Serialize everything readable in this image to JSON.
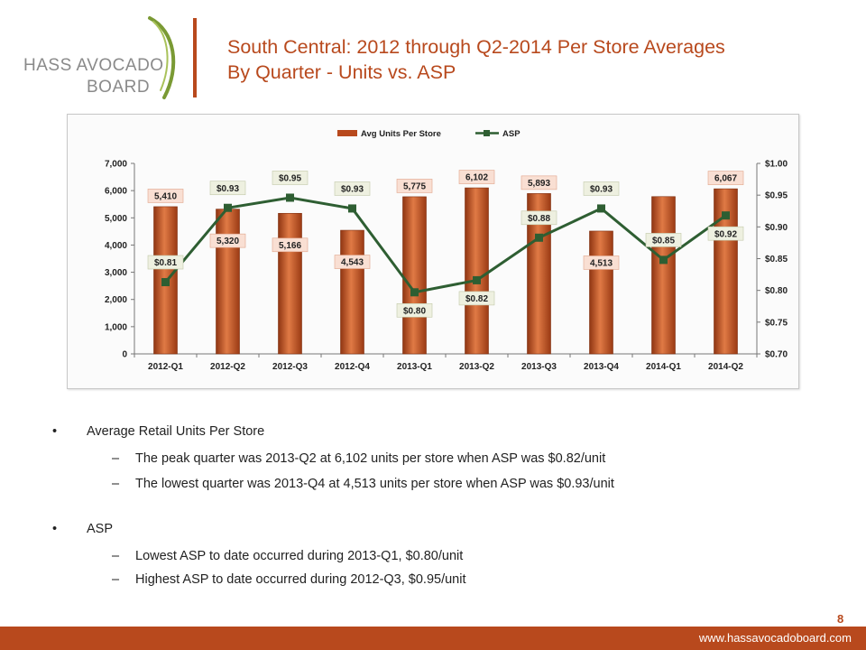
{
  "logo": {
    "line1": "HASS AVOCADO",
    "line2": "BOARD"
  },
  "title": {
    "line1": "South Central: 2012 through Q2-2014 Per Store Averages",
    "line2": "By Quarter - Units vs. ASP"
  },
  "chart_data": {
    "type": "bar",
    "categories": [
      "2012-Q1",
      "2012-Q2",
      "2012-Q3",
      "2012-Q4",
      "2013-Q1",
      "2013-Q2",
      "2013-Q3",
      "2013-Q4",
      "2014-Q1",
      "2014-Q2"
    ],
    "series": [
      {
        "name": "Avg Units Per Store",
        "type": "bar",
        "axis": "left",
        "color": "#b8491d",
        "values": [
          5410,
          5320,
          5166,
          4543,
          5775,
          6102,
          5893,
          4513,
          5780,
          6067
        ],
        "labels": [
          "5,410",
          "5,320",
          "5,166",
          "4,543",
          "5,775",
          "6,102",
          "5,893",
          "4,513",
          null,
          "6,067"
        ]
      },
      {
        "name": "ASP",
        "type": "line",
        "axis": "right",
        "color": "#2e5e32",
        "values": [
          0.813,
          0.93,
          0.946,
          0.929,
          0.797,
          0.816,
          0.883,
          0.929,
          0.848,
          0.918
        ],
        "labels": [
          "$0.81",
          "$0.93",
          "$0.95",
          "$0.93",
          "$0.80",
          "$0.82",
          "$0.88",
          "$0.93",
          "$0.85",
          "$0.92"
        ]
      }
    ],
    "ylim_left": [
      0,
      7000
    ],
    "yticks_left": [
      "0",
      "1,000",
      "2,000",
      "3,000",
      "4,000",
      "5,000",
      "6,000",
      "7,000"
    ],
    "ylim_right": [
      0.7,
      1.0
    ],
    "yticks_right": [
      "$0.70",
      "$0.75",
      "$0.80",
      "$0.85",
      "$0.90",
      "$0.95",
      "$1.00"
    ],
    "legend": "top",
    "grid": false
  },
  "bullets": [
    {
      "text": "Average Retail Units Per Store",
      "subs": [
        "The peak quarter was 2013-Q2 at 6,102 units per store when ASP was $0.82/unit",
        "The lowest quarter was 2013-Q4 at 4,513 units per store when ASP was $0.93/unit"
      ]
    },
    {
      "text": "ASP",
      "subs": [
        "Lowest ASP to date occurred during 2013-Q1, $0.80/unit",
        "Highest ASP to date occurred during 2012-Q3, $0.95/unit"
      ]
    }
  ],
  "bullet_marker": "•",
  "dash_marker": "–",
  "page_number": "8",
  "footer_url": "www.hassavocadoboard.com"
}
